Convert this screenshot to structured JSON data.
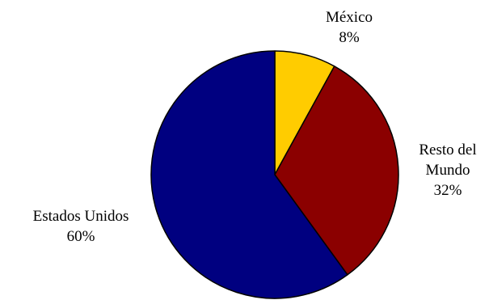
{
  "chart_data": {
    "type": "pie",
    "title": "",
    "slices": [
      {
        "label": "México",
        "value": 8,
        "display": "8%",
        "color": "#FFCC00"
      },
      {
        "label": "Resto del Mundo",
        "label_lines": [
          "Resto del",
          "Mundo"
        ],
        "value": 32,
        "display": "32%",
        "color": "#8B0000"
      },
      {
        "label": "Estados Unidos",
        "value": 60,
        "display": "60%",
        "color": "#000080"
      }
    ],
    "start_angle": "12 o'clock",
    "direction": "clockwise",
    "outline_color": "#000000",
    "legend": "none"
  }
}
